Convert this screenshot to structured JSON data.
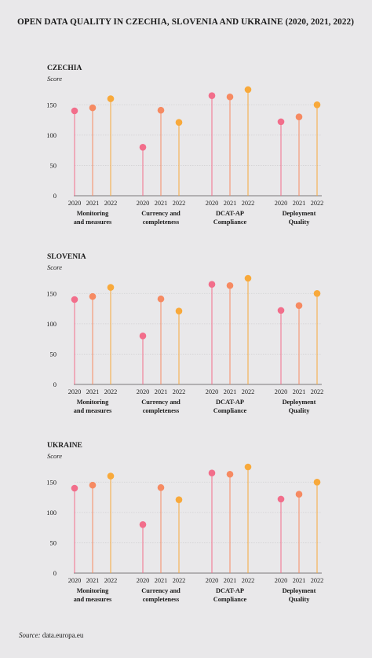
{
  "title": "OPEN DATA QUALITY IN CZECHIA, SLOVENIA AND UKRAINE (2020, 2021, 2022)",
  "source": {
    "label": "Source:",
    "value": "data.europa.eu"
  },
  "colors": {
    "2020": "#f26e8b",
    "2021": "#f68a62",
    "2022": "#f8a93b",
    "grid": "#d2d1d4",
    "axis": "#555555"
  },
  "chart_data": [
    {
      "type": "lollipop",
      "title": "CZECHIA",
      "ylabel": "Score",
      "ylim": [
        0,
        175
      ],
      "yticks": [
        0,
        50,
        100,
        150
      ],
      "grid": true,
      "years": [
        "2020",
        "2021",
        "2022"
      ],
      "categories": [
        "Monitoring\nand measures",
        "Currency and\ncompleteness",
        "DCAT-AP\nCompliance",
        "Deployment\nQuality"
      ],
      "series": [
        {
          "name": "2020",
          "values": [
            140,
            80,
            165,
            122
          ]
        },
        {
          "name": "2021",
          "values": [
            145,
            141,
            163,
            130
          ]
        },
        {
          "name": "2022",
          "values": [
            160,
            121,
            175,
            150
          ]
        }
      ]
    },
    {
      "type": "lollipop",
      "title": "SLOVENIA",
      "ylabel": "Score",
      "ylim": [
        0,
        175
      ],
      "yticks": [
        0,
        50,
        100,
        150
      ],
      "grid": true,
      "years": [
        "2020",
        "2021",
        "2022"
      ],
      "categories": [
        "Monitoring\nand measures",
        "Currency and\ncompleteness",
        "DCAT-AP\nCompliance",
        "Deployment\nQuality"
      ],
      "series": [
        {
          "name": "2020",
          "values": [
            140,
            80,
            165,
            122
          ]
        },
        {
          "name": "2021",
          "values": [
            145,
            141,
            163,
            130
          ]
        },
        {
          "name": "2022",
          "values": [
            160,
            121,
            175,
            150
          ]
        }
      ]
    },
    {
      "type": "lollipop",
      "title": "UKRAINE",
      "ylabel": "Score",
      "ylim": [
        0,
        175
      ],
      "yticks": [
        0,
        50,
        100,
        150
      ],
      "grid": true,
      "years": [
        "2020",
        "2021",
        "2022"
      ],
      "categories": [
        "Monitoring\nand measures",
        "Currency and\ncompleteness",
        "DCAT-AP\nCompliance",
        "Deployment\nQuality"
      ],
      "series": [
        {
          "name": "2020",
          "values": [
            140,
            80,
            165,
            122
          ]
        },
        {
          "name": "2021",
          "values": [
            145,
            141,
            163,
            130
          ]
        },
        {
          "name": "2022",
          "values": [
            160,
            121,
            175,
            150
          ]
        }
      ]
    }
  ]
}
